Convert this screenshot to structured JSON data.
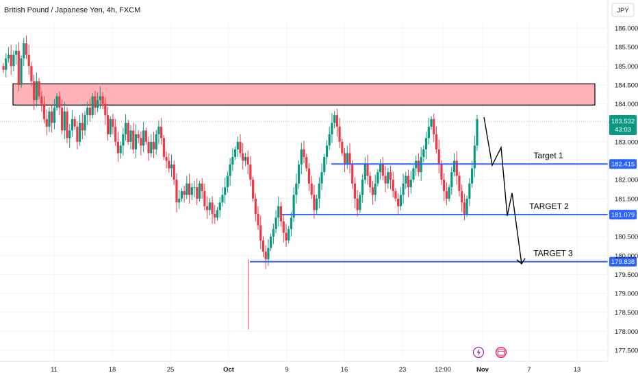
{
  "header": {
    "title": "British Pound / Japanese Yen, 4h, FXCM",
    "currency": "JPY"
  },
  "colors": {
    "up": "#089981",
    "down": "#f23645",
    "zone_fill": "#ffb3b8",
    "level_line": "#2962ff",
    "current_price_bg": "#089981"
  },
  "icons": [
    "lightning-icon",
    "calendar-event-icon"
  ],
  "chart_data": {
    "type": "candlestick",
    "title": "British Pound / Japanese Yen, 4h, FXCM",
    "y_axis": {
      "min": 177.3,
      "max": 186.3,
      "ticks": [
        "186.000",
        "185.500",
        "185.000",
        "184.500",
        "184.000",
        "183.000",
        "182.000",
        "181.500",
        "180.500",
        "180.000",
        "179.500",
        "179.000",
        "178.500",
        "178.000",
        "177.500"
      ]
    },
    "x_axis": {
      "ticks": [
        "11",
        "18",
        "25",
        "Oct",
        "9",
        "16",
        "23",
        "12:00",
        "Nov",
        "7",
        "13"
      ]
    },
    "current_price": {
      "value": "183.532",
      "countdown": "43:03"
    },
    "resistance_zone": {
      "top": 184.53,
      "bottom": 183.97
    },
    "levels": [
      {
        "name": "Target 1",
        "value": 182.415,
        "label": "182.415"
      },
      {
        "name": "TARGET 2",
        "value": 181.079,
        "label": "181.079"
      },
      {
        "name": "TARGET 3",
        "value": 179.838,
        "label": "179.838"
      }
    ],
    "projection_path": [
      183.65,
      182.38,
      182.85,
      181.05,
      181.65,
      179.78
    ],
    "grid": true,
    "closes": [
      184.9,
      185.2,
      185.3,
      185.0,
      185.3,
      185.4,
      184.5,
      185.2,
      185.6,
      185.3,
      185.0,
      184.6,
      184.1,
      184.6,
      184.2,
      184.0,
      183.6,
      183.4,
      183.8,
      183.5,
      183.9,
      184.2,
      183.9,
      183.3,
      183.8,
      183.1,
      183.3,
      183.6,
      183.4,
      183.0,
      183.5,
      183.3,
      183.7,
      183.9,
      183.7,
      184.2,
      183.9,
      184.1,
      184.2,
      184.0,
      183.7,
      183.2,
      183.6,
      183.4,
      183.0,
      182.7,
      182.9,
      183.2,
      183.5,
      183.0,
      183.3,
      182.8,
      183.2,
      183.1,
      182.9,
      183.3,
      183.0,
      182.7,
      183.0,
      182.8,
      183.2,
      183.4,
      183.1,
      182.6,
      182.5,
      182.3,
      182.4,
      182.0,
      181.4,
      181.5,
      181.7,
      181.6,
      181.9,
      181.6,
      181.8,
      181.8,
      181.5,
      181.9,
      181.7,
      181.3,
      181.2,
      181.4,
      181.1,
      181.0,
      181.2,
      181.4,
      181.6,
      181.8,
      182.1,
      182.4,
      182.6,
      182.8,
      183.0,
      182.7,
      182.5,
      182.6,
      182.4,
      182.0,
      181.5,
      181.1,
      180.8,
      180.4,
      180.1,
      179.9,
      180.2,
      180.5,
      180.7,
      181.0,
      181.3,
      180.9,
      180.6,
      180.4,
      180.7,
      181.0,
      181.6,
      181.9,
      182.4,
      182.8,
      182.6,
      182.3,
      181.9,
      181.6,
      181.2,
      181.5,
      181.9,
      182.2,
      182.6,
      182.9,
      183.2,
      183.5,
      183.7,
      183.4,
      183.0,
      182.7,
      182.4,
      182.7,
      182.4,
      181.9,
      181.5,
      181.2,
      181.6,
      182.0,
      182.4,
      182.1,
      181.8,
      181.6,
      181.9,
      182.2,
      182.4,
      182.1,
      181.9,
      182.2,
      182.0,
      181.7,
      181.5,
      181.3,
      181.6,
      181.9,
      182.1,
      181.8,
      182.0,
      182.3,
      182.5,
      182.2,
      182.6,
      182.8,
      183.1,
      183.4,
      183.6,
      183.2,
      182.8,
      182.4,
      182.0,
      181.7,
      181.5,
      181.8,
      182.2,
      182.5,
      182.1,
      181.7,
      181.4,
      181.1,
      181.5,
      181.9,
      182.3,
      182.9,
      183.6
    ]
  }
}
